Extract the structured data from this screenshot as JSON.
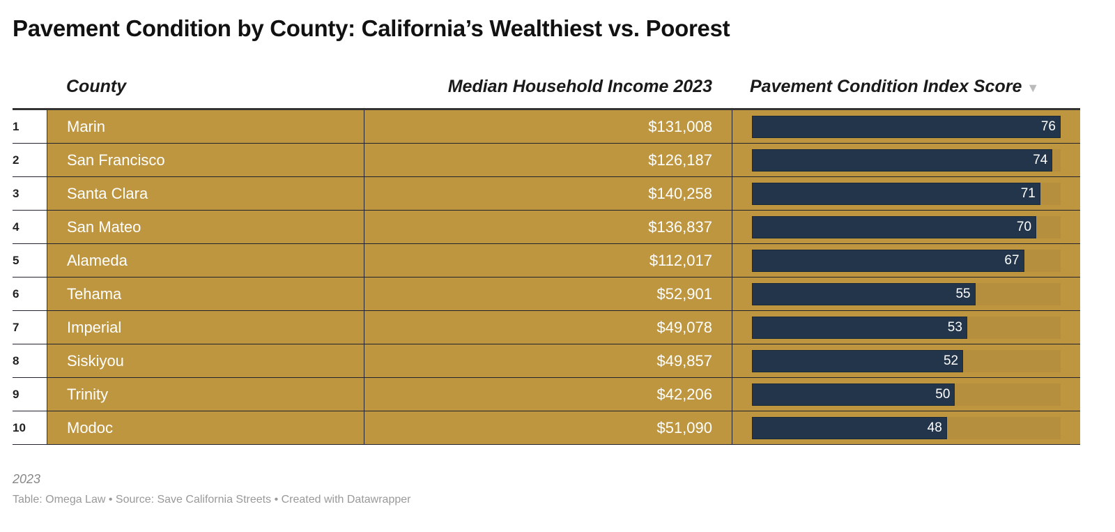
{
  "title": "Pavement Condition by County: California’s Wealthiest vs. Poorest",
  "columns": {
    "county": "County",
    "income": "Median Household Income 2023",
    "score": "Pavement Condition Index Score",
    "sort_icon": "triangle-down"
  },
  "chart_data": {
    "type": "table",
    "bar_color": "#22354b",
    "background_color": "#be963f",
    "bar_max": 76,
    "rows": [
      {
        "rank": "1",
        "county": "Marin",
        "income": "$131,008",
        "score": 76
      },
      {
        "rank": "2",
        "county": "San Francisco",
        "income": "$126,187",
        "score": 74
      },
      {
        "rank": "3",
        "county": "Santa Clara",
        "income": "$140,258",
        "score": 71
      },
      {
        "rank": "4",
        "county": "San Mateo",
        "income": "$136,837",
        "score": 70
      },
      {
        "rank": "5",
        "county": "Alameda",
        "income": "$112,017",
        "score": 67
      },
      {
        "rank": "6",
        "county": "Tehama",
        "income": "$52,901",
        "score": 55
      },
      {
        "rank": "7",
        "county": "Imperial",
        "income": "$49,078",
        "score": 53
      },
      {
        "rank": "8",
        "county": "Siskiyou",
        "income": "$49,857",
        "score": 52
      },
      {
        "rank": "9",
        "county": "Trinity",
        "income": "$42,206",
        "score": 50
      },
      {
        "rank": "10",
        "county": "Modoc",
        "income": "$51,090",
        "score": 48
      }
    ]
  },
  "footer": {
    "note": "2023",
    "source": "Table: Omega Law • Source: Save California Streets • Created with Datawrapper"
  }
}
